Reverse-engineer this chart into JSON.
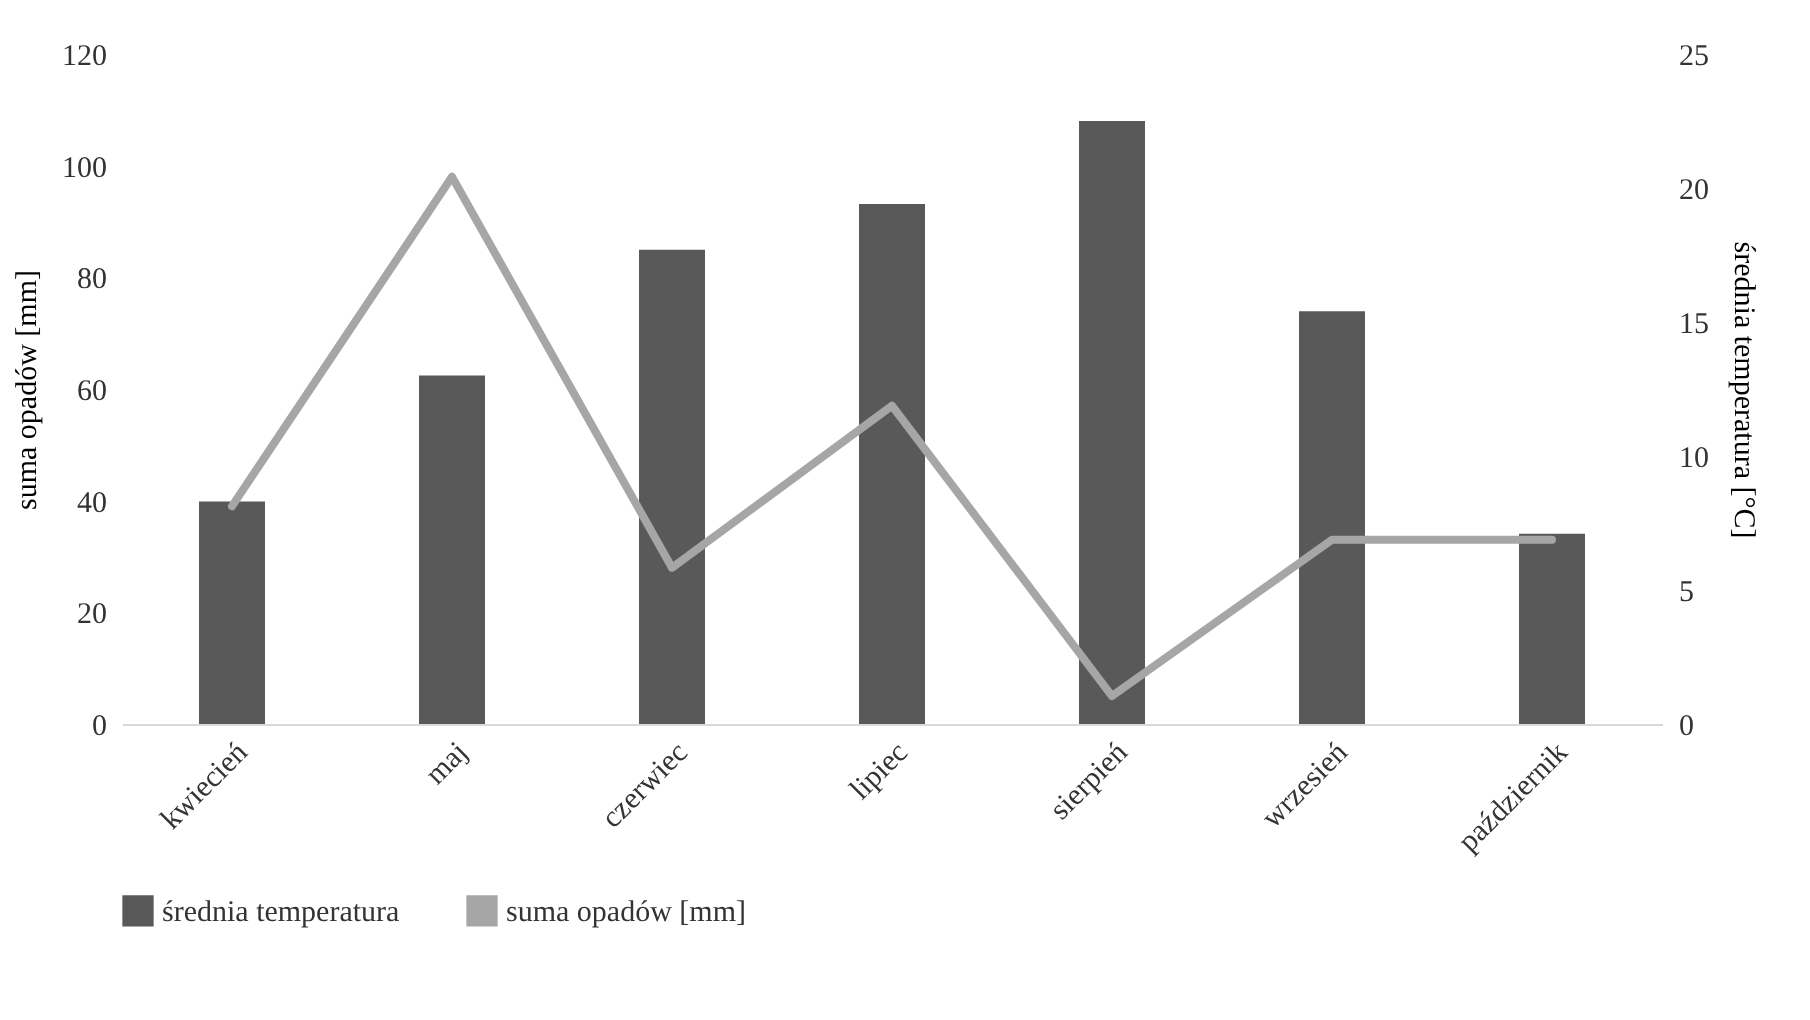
{
  "chart_data": {
    "type": "bar",
    "categories": [
      "kwiecień",
      "maj",
      "czerwiec",
      "lipiec",
      "sierpień",
      "wrzesień",
      "październik"
    ],
    "ylabel": "suma opadów [mm]",
    "y2label": "średnia temperatura  [°C]",
    "ylim": [
      0,
      120
    ],
    "yticks": [
      0,
      20,
      40,
      60,
      80,
      100,
      120
    ],
    "y2lim": [
      0,
      25
    ],
    "y2ticks": [
      0,
      5,
      10,
      15,
      20,
      25
    ],
    "grid": false,
    "legend": "bottom",
    "series": [
      {
        "name": "średnia temperatura",
        "type": "bar",
        "axis": "y2",
        "color": "#595959",
        "values": [
          8.3,
          13.0,
          17.7,
          19.4,
          22.5,
          15.4,
          7.1
        ]
      },
      {
        "name": "suma opadów  [mm]",
        "type": "line",
        "color": "#a6a6a6",
        "values": [
          39,
          98,
          28,
          57,
          5,
          33,
          33
        ]
      }
    ]
  }
}
